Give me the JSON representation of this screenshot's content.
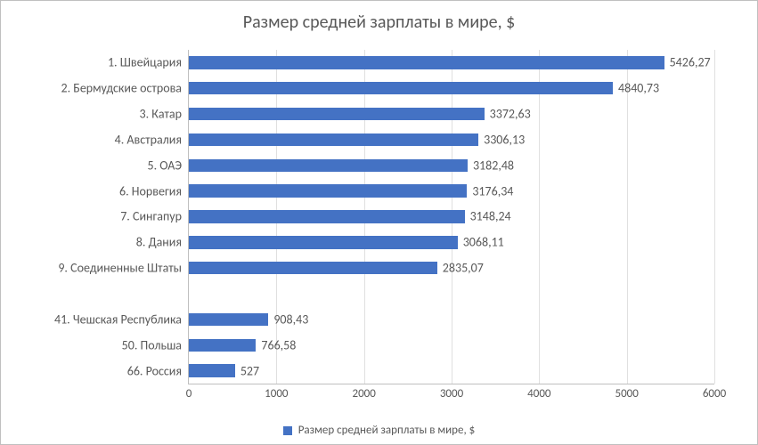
{
  "chart": {
    "type": "bar-horizontal",
    "title": "Размер средней зарплаты в мире, $",
    "title_fontsize": 20,
    "title_color": "#595959",
    "background_color": "#ffffff",
    "frame_border_color": "#c0c0c0",
    "grid_color": "#e0e0e0",
    "axis_color": "#bfbfbf",
    "label_color": "#595959",
    "label_fontsize": 14,
    "tick_fontsize": 13,
    "bar_color": "#4472c4",
    "bar_height_ratio": 0.5,
    "x_axis": {
      "min": 0,
      "max": 6000,
      "tick_step": 1000,
      "ticks": [
        "0",
        "1000",
        "2000",
        "3000",
        "4000",
        "5000",
        "6000"
      ]
    },
    "categories": [
      {
        "label": "1. Швейцария",
        "value": 5426.27,
        "value_label": "5426,27"
      },
      {
        "label": "2. Бермудские острова",
        "value": 4840.73,
        "value_label": "4840,73"
      },
      {
        "label": "3. Катар",
        "value": 3372.63,
        "value_label": "3372,63"
      },
      {
        "label": "4. Австралия",
        "value": 3306.13,
        "value_label": "3306,13"
      },
      {
        "label": "5. ОАЭ",
        "value": 3182.48,
        "value_label": "3182,48"
      },
      {
        "label": "6. Норвегия",
        "value": 3176.34,
        "value_label": "3176,34"
      },
      {
        "label": "7. Сингапур",
        "value": 3148.24,
        "value_label": "3148,24"
      },
      {
        "label": "8. Дания",
        "value": 3068.11,
        "value_label": "3068,11"
      },
      {
        "label": "9. Соединенные Штаты",
        "value": 2835.07,
        "value_label": "2835,07"
      },
      {
        "label": "",
        "value": null,
        "value_label": ""
      },
      {
        "label": "41. Чешская Республика",
        "value": 908.43,
        "value_label": "908,43"
      },
      {
        "label": "50. Польша",
        "value": 766.58,
        "value_label": "766,58"
      },
      {
        "label": "66. Россия",
        "value": 527,
        "value_label": "527"
      }
    ],
    "legend": {
      "label": "Размер средней зарплаты в мире, $",
      "swatch_color": "#4472c4"
    }
  }
}
